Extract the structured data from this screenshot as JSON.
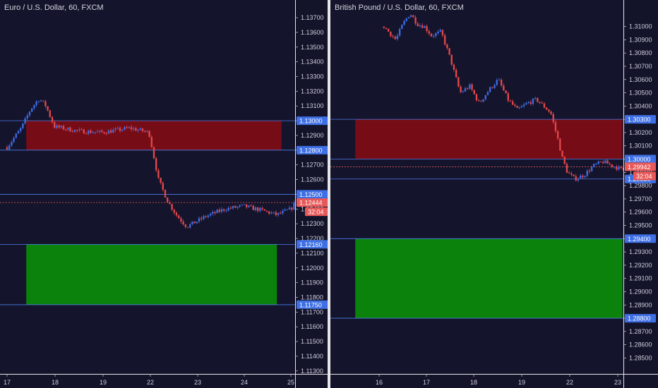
{
  "chart_data": [
    {
      "type": "candlestick",
      "title": "Euro / U.S. Dollar, 60, FXCM",
      "ylim": [
        1.1128,
        1.1382
      ],
      "y_ticks": [
        "1.13700",
        "1.13600",
        "1.13500",
        "1.13400",
        "1.13300",
        "1.13200",
        "1.13100",
        "1.13000",
        "1.12900",
        "1.12800",
        "1.12700",
        "1.12600",
        "1.12500",
        "1.12400",
        "1.12300",
        "1.12200",
        "1.12100",
        "1.12000",
        "1.11900",
        "1.11800",
        "1.11700",
        "1.11600",
        "1.11500",
        "1.11400",
        "1.11300"
      ],
      "x_ticks": [
        "17",
        "18",
        "19",
        "22",
        "23",
        "24",
        "25"
      ],
      "price_labels": [
        {
          "value": 1.13,
          "text": "1.13000"
        },
        {
          "value": 1.128,
          "text": "1.12800"
        },
        {
          "value": 1.125,
          "text": "1.12500"
        },
        {
          "value": 1.1216,
          "text": "1.12160"
        },
        {
          "value": 1.1175,
          "text": "1.11750"
        }
      ],
      "current_price": {
        "value": 1.12444,
        "text": "1.12444",
        "countdown": "32:04"
      },
      "zones": [
        {
          "kind": "resistance",
          "from": 1.128,
          "to": 1.13,
          "color": "#7e0c15",
          "from_date": "17.4",
          "to_date": "24.8"
        },
        {
          "kind": "support",
          "from": 1.1175,
          "to": 1.1216,
          "color": "#0a8c0a",
          "from_date": "17.4",
          "to_date": "24.7"
        }
      ],
      "candles_path": [
        [
          0.0,
          1.1282
        ],
        [
          0.3,
          1.1295
        ],
        [
          0.5,
          1.1308
        ],
        [
          0.68,
          1.1315
        ],
        [
          0.82,
          1.131
        ],
        [
          1.0,
          1.1296
        ],
        [
          1.5,
          1.1293
        ],
        [
          2.0,
          1.1292
        ],
        [
          2.6,
          1.1295
        ],
        [
          3.0,
          1.1292
        ],
        [
          3.2,
          1.126
        ],
        [
          3.4,
          1.1245
        ],
        [
          3.6,
          1.1235
        ],
        [
          3.8,
          1.1228
        ],
        [
          4.2,
          1.1235
        ],
        [
          4.6,
          1.124
        ],
        [
          5.0,
          1.1242
        ],
        [
          5.4,
          1.1239
        ],
        [
          5.7,
          1.1236
        ],
        [
          6.0,
          1.124
        ],
        [
          6.1,
          1.1245
        ]
      ],
      "colors": {
        "up": "#3d6ae0",
        "down": "#e0474a",
        "level": "#4d7ce8",
        "current": "#e85858"
      }
    },
    {
      "type": "candlestick",
      "title": "British Pound / U.S. Dollar, 60, FXCM",
      "ylim": [
        1.2838,
        1.312
      ],
      "y_ticks": [
        "1.31000",
        "1.30900",
        "1.30800",
        "1.30700",
        "1.30600",
        "1.30500",
        "1.30400",
        "1.30300",
        "1.30200",
        "1.30100",
        "1.30000",
        "1.29900",
        "1.29800",
        "1.29700",
        "1.29600",
        "1.29500",
        "1.29400",
        "1.29300",
        "1.29200",
        "1.29100",
        "1.29000",
        "1.28900",
        "1.28800",
        "1.28700",
        "1.28600",
        "1.28500"
      ],
      "x_ticks": [
        "16",
        "17",
        "18",
        "19",
        "22",
        "23"
      ],
      "price_labels": [
        {
          "value": 1.303,
          "text": "1.30300"
        },
        {
          "value": 1.3,
          "text": "1.30000"
        },
        {
          "value": 1.2985,
          "text": "1.29850"
        },
        {
          "value": 1.294,
          "text": "1.29400"
        },
        {
          "value": 1.288,
          "text": "1.28800"
        }
      ],
      "current_price": {
        "value": 1.29942,
        "text": "1.29942",
        "countdown": "32:04"
      },
      "zones": [
        {
          "kind": "resistance",
          "from": 1.3,
          "to": 1.303,
          "color": "#7e0c15",
          "from_date": "15.5",
          "to_date": "23.1"
        },
        {
          "kind": "support",
          "from": 1.288,
          "to": 1.294,
          "color": "#0a8c0a",
          "from_date": "15.5",
          "to_date": "23.1"
        }
      ],
      "candles_path": [
        [
          0.1,
          1.31
        ],
        [
          0.35,
          1.309
        ],
        [
          0.5,
          1.3102
        ],
        [
          0.65,
          1.311
        ],
        [
          0.8,
          1.3102
        ],
        [
          0.95,
          1.31
        ],
        [
          1.1,
          1.3093
        ],
        [
          1.3,
          1.3096
        ],
        [
          1.5,
          1.3075
        ],
        [
          1.7,
          1.305
        ],
        [
          1.9,
          1.3055
        ],
        [
          2.1,
          1.3042
        ],
        [
          2.3,
          1.3052
        ],
        [
          2.5,
          1.306
        ],
        [
          2.7,
          1.3045
        ],
        [
          2.9,
          1.3037
        ],
        [
          3.1,
          1.3042
        ],
        [
          3.3,
          1.3045
        ],
        [
          3.45,
          1.304
        ],
        [
          3.6,
          1.3035
        ],
        [
          3.75,
          1.3015
        ],
        [
          3.85,
          1.3
        ],
        [
          3.95,
          1.299
        ],
        [
          4.1,
          1.2985
        ],
        [
          4.3,
          1.2988
        ],
        [
          4.5,
          1.2995
        ],
        [
          4.7,
          1.2998
        ],
        [
          4.9,
          1.2995
        ],
        [
          5.1,
          1.2992
        ],
        [
          5.3,
          1.299
        ],
        [
          5.5,
          1.2994
        ]
      ],
      "colors": {
        "up": "#3d6ae0",
        "down": "#e0474a",
        "level": "#4d7ce8",
        "current": "#e85858"
      }
    }
  ]
}
